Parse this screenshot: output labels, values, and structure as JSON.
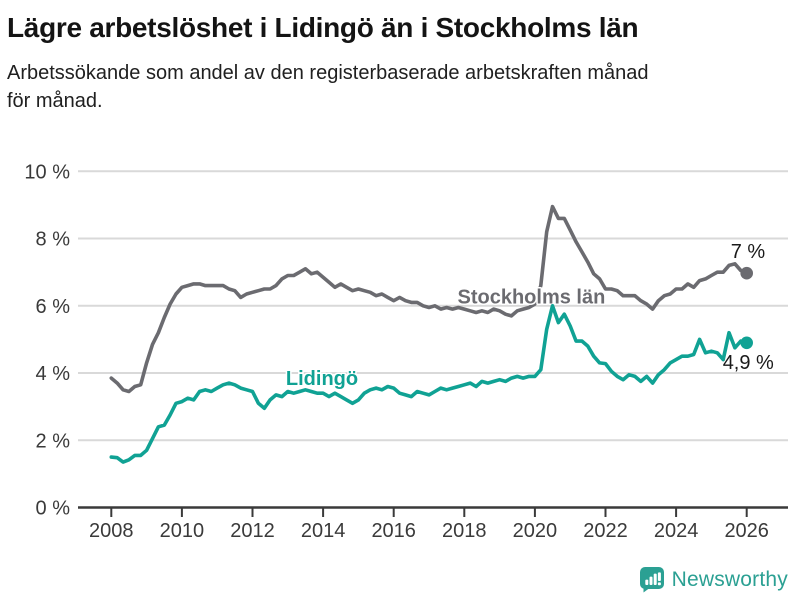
{
  "chart_data": {
    "type": "line",
    "title": "Lägre arbetslöshet i Lidingö än i Stockholms län",
    "subtitle": "Arbetssökande som andel av den registerbaserade arbetskraften månad\nför månad.",
    "xlabel": "",
    "ylabel": "",
    "ylim": [
      0,
      10
    ],
    "grid": "horizontal",
    "x_start": 2008,
    "points_per_year": 6,
    "y_ticks": [
      {
        "v": 0,
        "label": "0 %"
      },
      {
        "v": 2,
        "label": "2 %"
      },
      {
        "v": 4,
        "label": "4 %"
      },
      {
        "v": 6,
        "label": "6 %"
      },
      {
        "v": 8,
        "label": "8 %"
      },
      {
        "v": 10,
        "label": "10 %"
      }
    ],
    "y_gridlines": [
      2,
      4,
      6,
      8,
      10
    ],
    "x_ticks": [
      {
        "v": 2008,
        "label": "2008"
      },
      {
        "v": 2010,
        "label": "2010"
      },
      {
        "v": 2012,
        "label": "2012"
      },
      {
        "v": 2014,
        "label": "2014"
      },
      {
        "v": 2016,
        "label": "2016"
      },
      {
        "v": 2018,
        "label": "2018"
      },
      {
        "v": 2020,
        "label": "2020"
      },
      {
        "v": 2022,
        "label": "2022"
      },
      {
        "v": 2024,
        "label": "2024"
      },
      {
        "v": 2026,
        "label": "2026"
      }
    ],
    "series": [
      {
        "name": "Stockholms län",
        "color": "#6b6b70",
        "end_label": "7 %",
        "end_value": 6.97,
        "label_at": {
          "x": 2019.9,
          "y": 6.28
        },
        "values": [
          3.85,
          3.7,
          3.5,
          3.45,
          3.6,
          3.65,
          4.3,
          4.85,
          5.2,
          5.65,
          6.05,
          6.35,
          6.55,
          6.6,
          6.65,
          6.65,
          6.6,
          6.6,
          6.6,
          6.6,
          6.5,
          6.45,
          6.25,
          6.35,
          6.4,
          6.45,
          6.5,
          6.5,
          6.6,
          6.8,
          6.9,
          6.9,
          7.0,
          7.1,
          6.95,
          7.0,
          6.85,
          6.7,
          6.55,
          6.65,
          6.55,
          6.45,
          6.5,
          6.45,
          6.4,
          6.3,
          6.35,
          6.25,
          6.15,
          6.25,
          6.15,
          6.1,
          6.1,
          6.0,
          5.95,
          6.0,
          5.9,
          5.95,
          5.9,
          5.95,
          5.9,
          5.85,
          5.8,
          5.85,
          5.8,
          5.9,
          5.85,
          5.75,
          5.7,
          5.85,
          5.9,
          5.95,
          6.05,
          6.6,
          8.2,
          8.95,
          8.6,
          8.6,
          8.25,
          7.9,
          7.6,
          7.3,
          6.95,
          6.8,
          6.5,
          6.5,
          6.45,
          6.3,
          6.3,
          6.3,
          6.15,
          6.05,
          5.9,
          6.15,
          6.3,
          6.35,
          6.5,
          6.5,
          6.65,
          6.55,
          6.75,
          6.8,
          6.9,
          7.0,
          7.0,
          7.2,
          7.25,
          7.05,
          6.97
        ]
      },
      {
        "name": "Lidingö",
        "color": "#10a294",
        "end_label": "4,9 %",
        "end_value": 4.9,
        "label_at": {
          "x": 2013.97,
          "y": 3.85
        },
        "values": [
          1.5,
          1.48,
          1.35,
          1.42,
          1.55,
          1.55,
          1.7,
          2.05,
          2.4,
          2.45,
          2.75,
          3.1,
          3.15,
          3.25,
          3.2,
          3.45,
          3.5,
          3.45,
          3.55,
          3.65,
          3.7,
          3.65,
          3.55,
          3.5,
          3.45,
          3.1,
          2.95,
          3.2,
          3.35,
          3.3,
          3.45,
          3.4,
          3.45,
          3.5,
          3.45,
          3.4,
          3.4,
          3.3,
          3.4,
          3.3,
          3.2,
          3.1,
          3.2,
          3.4,
          3.5,
          3.55,
          3.5,
          3.6,
          3.55,
          3.4,
          3.35,
          3.3,
          3.45,
          3.4,
          3.35,
          3.45,
          3.55,
          3.5,
          3.55,
          3.6,
          3.65,
          3.7,
          3.6,
          3.75,
          3.7,
          3.75,
          3.8,
          3.75,
          3.85,
          3.9,
          3.85,
          3.9,
          3.9,
          4.1,
          5.3,
          6.0,
          5.5,
          5.75,
          5.4,
          4.95,
          4.95,
          4.8,
          4.5,
          4.3,
          4.28,
          4.05,
          3.9,
          3.8,
          3.95,
          3.9,
          3.75,
          3.9,
          3.7,
          3.95,
          4.1,
          4.3,
          4.4,
          4.5,
          4.5,
          4.55,
          5.0,
          4.6,
          4.65,
          4.6,
          4.4,
          5.2,
          4.75,
          4.95,
          4.9
        ]
      }
    ]
  },
  "colors": {
    "background": "#ffffff",
    "gridline": "#d9d9d9",
    "axis": "#3a3a3a",
    "tick_text": "#3a3a3a",
    "annotation_text": "#1a1a1a"
  },
  "footer": {
    "brand": "Newsworthy",
    "logo_color": "#2ba093"
  }
}
